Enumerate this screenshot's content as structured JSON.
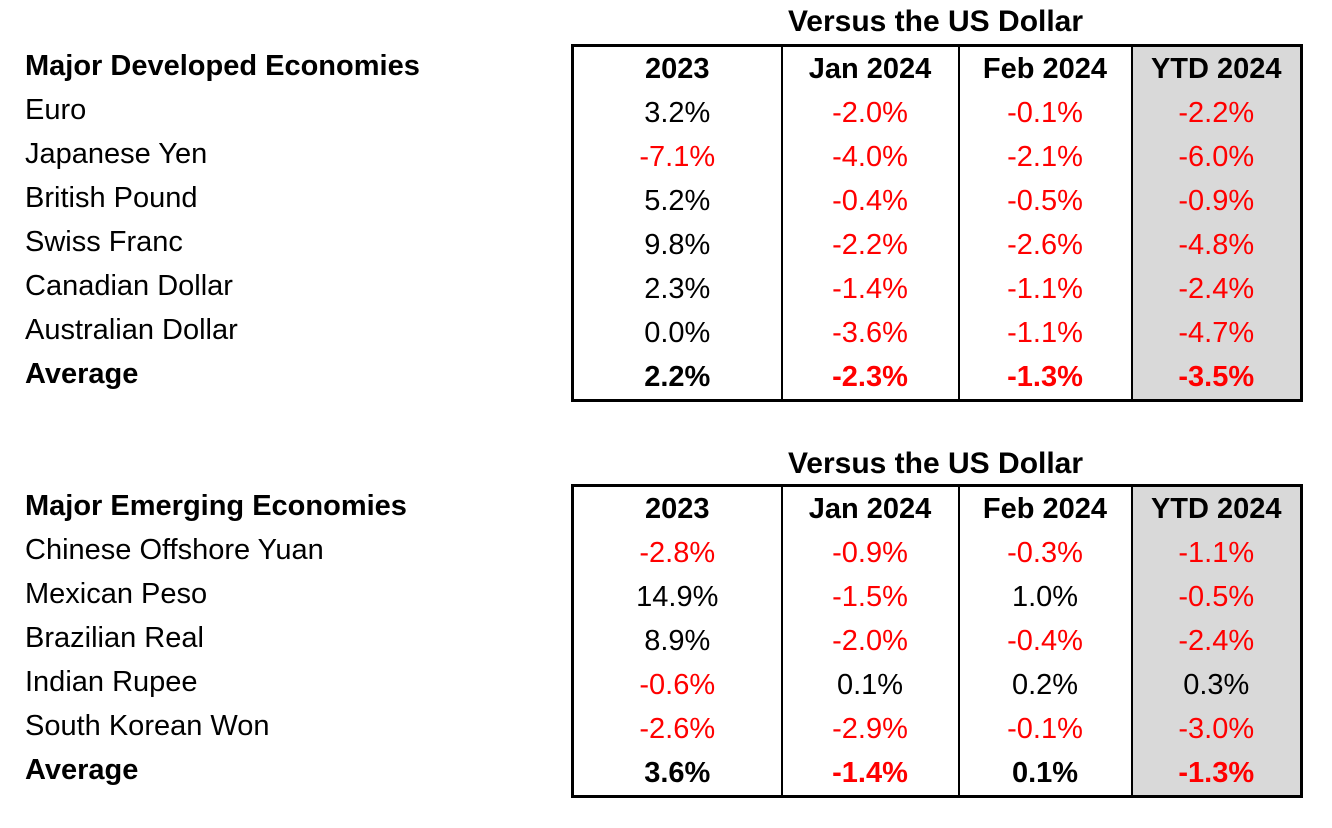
{
  "colors": {
    "negative_text": "#FF0000",
    "positive_text": "#000000",
    "ytd_column_bg": "#D9D9D9",
    "border": "#000000",
    "page_bg": "#FFFFFF"
  },
  "chart_data": [
    {
      "type": "table",
      "title": "Versus the US Dollar",
      "row_header": "Major Developed Economies",
      "columns": [
        "2023",
        "Jan 2024",
        "Feb 2024",
        "YTD 2024"
      ],
      "highlight_column": "YTD 2024",
      "value_color_rule": "negative values rendered in red",
      "rows": [
        {
          "label": "Euro",
          "bold": false,
          "values": [
            "3.2%",
            "-2.0%",
            "-0.1%",
            "-2.2%"
          ]
        },
        {
          "label": "Japanese Yen",
          "bold": false,
          "values": [
            "-7.1%",
            "-4.0%",
            "-2.1%",
            "-6.0%"
          ]
        },
        {
          "label": "British Pound",
          "bold": false,
          "values": [
            "5.2%",
            "-0.4%",
            "-0.5%",
            "-0.9%"
          ]
        },
        {
          "label": "Swiss Franc",
          "bold": false,
          "values": [
            "9.8%",
            "-2.2%",
            "-2.6%",
            "-4.8%"
          ]
        },
        {
          "label": "Canadian Dollar",
          "bold": false,
          "values": [
            "2.3%",
            "-1.4%",
            "-1.1%",
            "-2.4%"
          ]
        },
        {
          "label": "Australian Dollar",
          "bold": false,
          "values": [
            "0.0%",
            "-3.6%",
            "-1.1%",
            "-4.7%"
          ]
        },
        {
          "label": "Average",
          "bold": true,
          "values": [
            "2.2%",
            "-2.3%",
            "-1.3%",
            "-3.5%"
          ]
        }
      ]
    },
    {
      "type": "table",
      "title": "Versus the US Dollar",
      "row_header": "Major Emerging Economies",
      "columns": [
        "2023",
        "Jan 2024",
        "Feb 2024",
        "YTD 2024"
      ],
      "highlight_column": "YTD 2024",
      "value_color_rule": "negative values rendered in red",
      "rows": [
        {
          "label": "Chinese Offshore Yuan",
          "bold": false,
          "values": [
            "-2.8%",
            "-0.9%",
            "-0.3%",
            "-1.1%"
          ]
        },
        {
          "label": "Mexican Peso",
          "bold": false,
          "values": [
            "14.9%",
            "-1.5%",
            "1.0%",
            "-0.5%"
          ]
        },
        {
          "label": "Brazilian Real",
          "bold": false,
          "values": [
            "8.9%",
            "-2.0%",
            "-0.4%",
            "-2.4%"
          ]
        },
        {
          "label": "Indian Rupee",
          "bold": false,
          "values": [
            "-0.6%",
            "0.1%",
            "0.2%",
            "0.3%"
          ]
        },
        {
          "label": "South Korean Won",
          "bold": false,
          "values": [
            "-2.6%",
            "-2.9%",
            "-0.1%",
            "-3.0%"
          ]
        },
        {
          "label": "Average",
          "bold": true,
          "values": [
            "3.6%",
            "-1.4%",
            "0.1%",
            "-1.3%"
          ]
        }
      ]
    }
  ]
}
